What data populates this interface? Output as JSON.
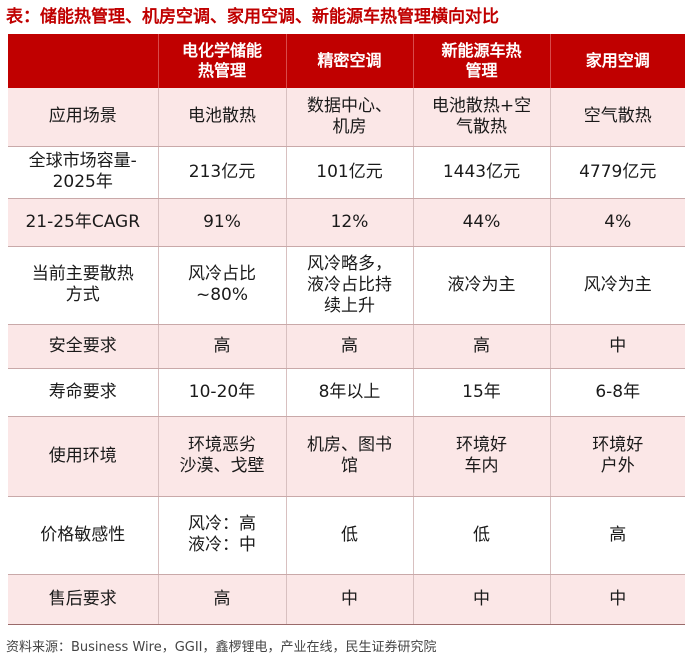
{
  "title": "表：储能热管理、机房空调、家用空调、新能源车热管理横向对比",
  "table": {
    "headers": [
      "",
      "电化学储能\n热管理",
      "精密空调",
      "新能源车热\n管理",
      "家用空调"
    ],
    "rows": [
      [
        "应用场景",
        "电池散热",
        "数据中心、\n机房",
        "电池散热+空\n气散热",
        "空气散热"
      ],
      [
        "全球市场容量-\n2025年",
        "213亿元",
        "101亿元",
        "1443亿元",
        "4779亿元"
      ],
      [
        "21-25年CAGR",
        "91%",
        "12%",
        "44%",
        "4%"
      ],
      [
        "当前主要散热\n方式",
        "风冷占比\n~80%",
        "风冷略多，\n液冷占比持\n续上升",
        "液冷为主",
        "风冷为主"
      ],
      [
        "安全要求",
        "高",
        "高",
        "高",
        "中"
      ],
      [
        "寿命要求",
        "10-20年",
        "8年以上",
        "15年",
        "6-8年"
      ],
      [
        "使用环境",
        "环境恶劣\n沙漠、戈壁",
        "机房、图书\n馆",
        "环境好\n车内",
        "环境好\n户外"
      ],
      [
        "价格敏感性",
        "风冷：高\n液冷：中",
        "低",
        "低",
        "高"
      ],
      [
        "售后要求",
        "高",
        "中",
        "中",
        "中"
      ]
    ]
  },
  "source": "资料来源：Business Wire，GGII，鑫椤锂电，产业在线，民生证券研究院"
}
